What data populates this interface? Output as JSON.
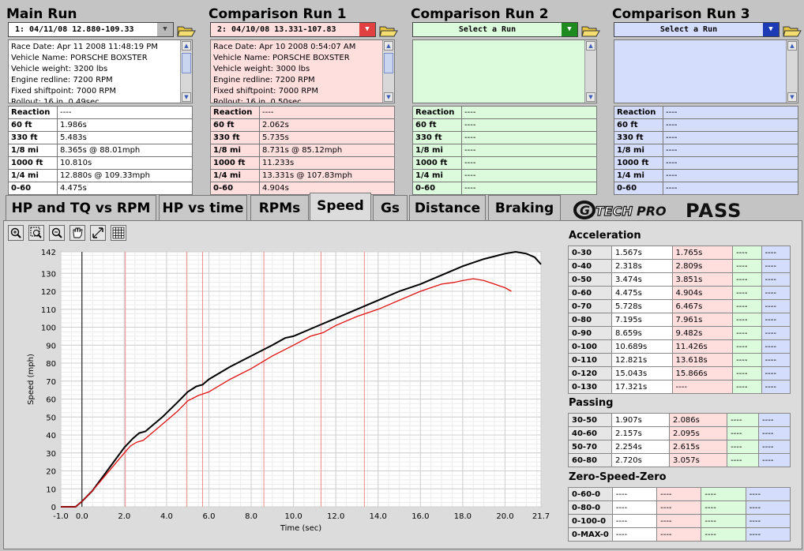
{
  "runs": [
    {
      "title": "Main Run",
      "selector": "1:  04/11/08 12.880-109.33",
      "bg": "#ffffff",
      "arrow_bg": "#b8b8b8",
      "sel_bg": "#ffffff",
      "info": [
        "Race Date: Apr 11 2008  11:48:19 PM",
        "Vehicle Name: PORSCHE BOXSTER",
        "Vehicle weight: 3200 lbs",
        "Engine redline: 7200 RPM",
        "Fixed shiftpoint: 7000 RPM",
        "Rollout: 16 in, 0.49sec"
      ],
      "metrics": [
        [
          "Reaction",
          "----"
        ],
        [
          "60 ft",
          "1.986s"
        ],
        [
          "330 ft",
          "5.483s"
        ],
        [
          "1/8 mi",
          "8.365s @ 88.01mph"
        ],
        [
          "1000 ft",
          "10.810s"
        ],
        [
          "1/4 mi",
          "12.880s @ 109.33mph"
        ],
        [
          "0-60",
          "4.475s"
        ]
      ]
    },
    {
      "title": "Comparison Run 1",
      "selector": "2:  04/10/08 13.331-107.83",
      "bg": "#ffdede",
      "arrow_bg": "#e04040",
      "sel_bg": "#ffdede",
      "info": [
        "Race Date: Apr 10 2008  0:54:07 AM",
        "Vehicle Name: PORSCHE BOXSTER",
        "Vehicle weight: 3000 lbs",
        "Engine redline: 7200 RPM",
        "Fixed shiftpoint: 7000 RPM",
        "Rollout: 16 in, 0.50sec"
      ],
      "metrics": [
        [
          "Reaction",
          "----"
        ],
        [
          "60 ft",
          "2.062s"
        ],
        [
          "330 ft",
          "5.735s"
        ],
        [
          "1/8 mi",
          "8.731s @ 85.12mph"
        ],
        [
          "1000 ft",
          "11.233s"
        ],
        [
          "1/4 mi",
          "13.331s @ 107.83mph"
        ],
        [
          "0-60",
          "4.904s"
        ]
      ]
    },
    {
      "title": "Comparison Run 2",
      "selector": "Select a Run",
      "bg": "#dcfadc",
      "arrow_bg": "#1f8a1f",
      "sel_bg": "#dcfadc",
      "info": [],
      "metrics": [
        [
          "Reaction",
          "----"
        ],
        [
          "60 ft",
          "----"
        ],
        [
          "330 ft",
          "----"
        ],
        [
          "1/8 mi",
          "----"
        ],
        [
          "1000 ft",
          "----"
        ],
        [
          "1/4 mi",
          "----"
        ],
        [
          "0-60",
          "----"
        ]
      ]
    },
    {
      "title": "Comparison Run 3",
      "selector": "Select a Run",
      "bg": "#d4ddfb",
      "arrow_bg": "#1d3bb5",
      "sel_bg": "#d4ddfb",
      "info": [],
      "metrics": [
        [
          "Reaction",
          "----"
        ],
        [
          "60 ft",
          "----"
        ],
        [
          "330 ft",
          "----"
        ],
        [
          "1/8 mi",
          "----"
        ],
        [
          "1000 ft",
          "----"
        ],
        [
          "1/4 mi",
          "----"
        ],
        [
          "0-60",
          "----"
        ]
      ]
    }
  ],
  "tabs": [
    "HP and TQ vs RPM",
    "HP vs time",
    "RPMs",
    "Speed",
    "Gs",
    "Distance",
    "Braking"
  ],
  "active_tab": "Speed",
  "logo": {
    "g": "G",
    "tech": "TECH",
    "pro": "PRO",
    "pass": "PASS"
  },
  "toolbar": [
    "zoom-in-icon",
    "zoom-rect-icon",
    "zoom-out-icon",
    "pan-hand-icon",
    "fit-icon",
    "grid-icon"
  ],
  "acceleration": {
    "title": "Acceleration",
    "rows": [
      [
        "0-30",
        "1.567s",
        "1.765s",
        "----",
        "----"
      ],
      [
        "0-40",
        "2.318s",
        "2.809s",
        "----",
        "----"
      ],
      [
        "0-50",
        "3.474s",
        "3.851s",
        "----",
        "----"
      ],
      [
        "0-60",
        "4.475s",
        "4.904s",
        "----",
        "----"
      ],
      [
        "0-70",
        "5.728s",
        "6.467s",
        "----",
        "----"
      ],
      [
        "0-80",
        "7.195s",
        "7.961s",
        "----",
        "----"
      ],
      [
        "0-90",
        "8.659s",
        "9.482s",
        "----",
        "----"
      ],
      [
        "0-100",
        "10.689s",
        "11.426s",
        "----",
        "----"
      ],
      [
        "0-110",
        "12.821s",
        "13.618s",
        "----",
        "----"
      ],
      [
        "0-120",
        "15.043s",
        "15.866s",
        "----",
        "----"
      ],
      [
        "0-130",
        "17.321s",
        "----",
        "----",
        "----"
      ]
    ]
  },
  "passing": {
    "title": "Passing",
    "rows": [
      [
        "30-50",
        "1.907s",
        "2.086s",
        "----",
        "----"
      ],
      [
        "40-60",
        "2.157s",
        "2.095s",
        "----",
        "----"
      ],
      [
        "50-70",
        "2.254s",
        "2.615s",
        "----",
        "----"
      ],
      [
        "60-80",
        "2.720s",
        "3.057s",
        "----",
        "----"
      ]
    ]
  },
  "zsz": {
    "title": "Zero-Speed-Zero",
    "rows": [
      [
        "0-60-0",
        "----",
        "----",
        "----",
        "----"
      ],
      [
        "0-80-0",
        "----",
        "----",
        "----",
        "----"
      ],
      [
        "0-100-0",
        "----",
        "----",
        "----",
        "----"
      ],
      [
        "0-MAX-0",
        "----",
        "----",
        "----",
        "----"
      ]
    ]
  },
  "chart_data": {
    "type": "line",
    "xlabel": "Time (sec)",
    "ylabel": "Speed (mph)",
    "xlim": [
      -1.0,
      21.7
    ],
    "ylim": [
      0,
      142
    ],
    "x_ticks": [
      -1.0,
      0.0,
      2.0,
      4.0,
      6.0,
      8.0,
      10.0,
      12.0,
      14.0,
      16.0,
      18.0,
      20.0,
      21.7
    ],
    "y_ticks": [
      0,
      10,
      20,
      30,
      40,
      50,
      60,
      70,
      80,
      90,
      100,
      110,
      120,
      130,
      142
    ],
    "grid": true,
    "shift_lines": [
      2.05,
      4.95,
      5.7,
      8.6,
      11.3,
      13.35
    ],
    "series": [
      {
        "color": "#000000",
        "points": [
          [
            -1.0,
            0
          ],
          [
            -0.3,
            0
          ],
          [
            0.0,
            3
          ],
          [
            0.5,
            9
          ],
          [
            1.0,
            17
          ],
          [
            1.5,
            25
          ],
          [
            2.0,
            33
          ],
          [
            2.4,
            38
          ],
          [
            2.7,
            41
          ],
          [
            3.0,
            42
          ],
          [
            3.2,
            44
          ],
          [
            3.8,
            50
          ],
          [
            4.5,
            58
          ],
          [
            5.0,
            64
          ],
          [
            5.4,
            67
          ],
          [
            5.7,
            68
          ],
          [
            6.0,
            71
          ],
          [
            7.0,
            78
          ],
          [
            8.0,
            84
          ],
          [
            9.0,
            90
          ],
          [
            9.6,
            94
          ],
          [
            10.0,
            95
          ],
          [
            11.0,
            100
          ],
          [
            12.0,
            105
          ],
          [
            13.0,
            110
          ],
          [
            14.0,
            115
          ],
          [
            15.0,
            120
          ],
          [
            16.0,
            124
          ],
          [
            17.0,
            129
          ],
          [
            18.0,
            134
          ],
          [
            19.0,
            138
          ],
          [
            20.0,
            141
          ],
          [
            20.5,
            142
          ],
          [
            21.0,
            141
          ],
          [
            21.4,
            139
          ],
          [
            21.7,
            135
          ]
        ]
      },
      {
        "color": "#e01010",
        "points": [
          [
            -1.0,
            0
          ],
          [
            -0.3,
            0
          ],
          [
            0.0,
            3
          ],
          [
            0.5,
            9
          ],
          [
            1.0,
            16
          ],
          [
            1.5,
            23
          ],
          [
            2.0,
            30
          ],
          [
            2.3,
            34
          ],
          [
            2.6,
            36
          ],
          [
            2.9,
            37
          ],
          [
            3.2,
            40
          ],
          [
            3.8,
            46
          ],
          [
            4.5,
            53
          ],
          [
            5.0,
            59
          ],
          [
            5.5,
            62
          ],
          [
            6.0,
            64
          ],
          [
            7.0,
            71
          ],
          [
            8.0,
            77
          ],
          [
            9.0,
            84
          ],
          [
            10.0,
            90
          ],
          [
            10.8,
            95
          ],
          [
            11.4,
            97
          ],
          [
            12.0,
            101
          ],
          [
            13.0,
            106
          ],
          [
            14.0,
            110
          ],
          [
            15.0,
            115
          ],
          [
            16.0,
            120
          ],
          [
            17.0,
            124
          ],
          [
            17.6,
            125
          ],
          [
            18.0,
            126
          ],
          [
            18.5,
            127
          ],
          [
            19.0,
            126
          ],
          [
            19.5,
            124
          ],
          [
            20.0,
            122
          ],
          [
            20.3,
            120
          ]
        ]
      }
    ]
  }
}
